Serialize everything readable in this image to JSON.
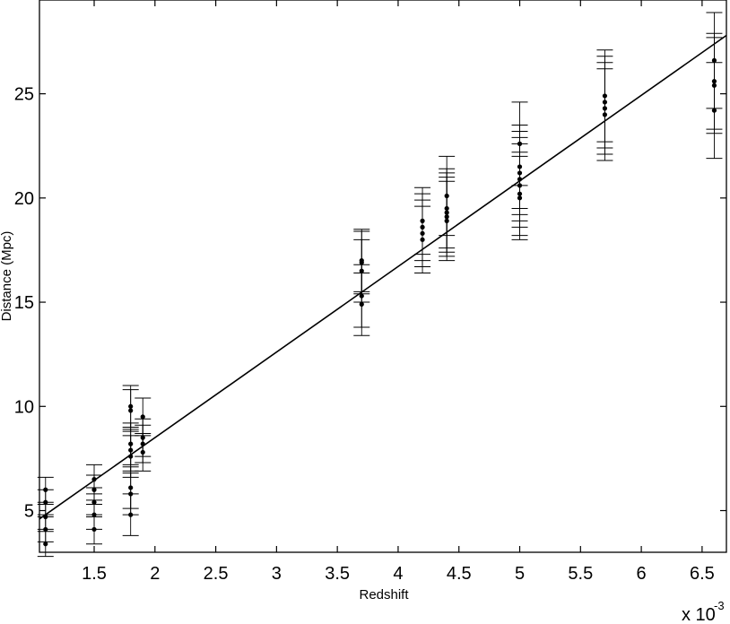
{
  "chart_data": {
    "type": "scatter",
    "title": "",
    "xlabel": "Redshift",
    "ylabel": "Distance (Mpc)",
    "x_multiplier_label": "x 10",
    "x_multiplier_exponent": "-3",
    "xlim": [
      1.05,
      6.7
    ],
    "ylim": [
      3.0,
      29.5
    ],
    "x_ticks": [
      1.5,
      2,
      2.5,
      3,
      3.5,
      4,
      4.5,
      5,
      5.5,
      6,
      6.5
    ],
    "x_tick_labels": [
      "1.5",
      "2",
      "2.5",
      "3",
      "3.5",
      "4",
      "4.5",
      "5",
      "5.5",
      "6",
      "6.5"
    ],
    "y_ticks": [
      5,
      10,
      15,
      20,
      25
    ],
    "y_tick_labels": [
      "5",
      "10",
      "15",
      "20",
      "25"
    ],
    "grid": false,
    "legend": "none",
    "fit_line": {
      "x": [
        1.05,
        6.7
      ],
      "y": [
        4.6,
        27.8
      ]
    },
    "points": [
      {
        "x": 1.1,
        "y": 3.4,
        "err": 0.6
      },
      {
        "x": 1.1,
        "y": 4.1,
        "err": 0.6
      },
      {
        "x": 1.1,
        "y": 4.7,
        "err": 0.6
      },
      {
        "x": 1.1,
        "y": 5.4,
        "err": 0.6
      },
      {
        "x": 1.1,
        "y": 6.0,
        "err": 0.6
      },
      {
        "x": 1.5,
        "y": 4.1,
        "err": 0.7
      },
      {
        "x": 1.5,
        "y": 4.8,
        "err": 0.7
      },
      {
        "x": 1.5,
        "y": 5.4,
        "err": 0.7
      },
      {
        "x": 1.5,
        "y": 6.0,
        "err": 0.7
      },
      {
        "x": 1.5,
        "y": 6.5,
        "err": 0.7
      },
      {
        "x": 1.8,
        "y": 4.8,
        "err": 1.0
      },
      {
        "x": 1.8,
        "y": 5.8,
        "err": 1.0
      },
      {
        "x": 1.8,
        "y": 6.1,
        "err": 1.0
      },
      {
        "x": 1.8,
        "y": 7.6,
        "err": 1.0
      },
      {
        "x": 1.8,
        "y": 7.9,
        "err": 1.0
      },
      {
        "x": 1.8,
        "y": 8.2,
        "err": 1.0
      },
      {
        "x": 1.8,
        "y": 9.8,
        "err": 1.0
      },
      {
        "x": 1.8,
        "y": 10.0,
        "err": 1.0
      },
      {
        "x": 1.9,
        "y": 7.8,
        "err": 0.9
      },
      {
        "x": 1.9,
        "y": 8.2,
        "err": 0.9
      },
      {
        "x": 1.9,
        "y": 8.5,
        "err": 0.9
      },
      {
        "x": 1.9,
        "y": 9.5,
        "err": 0.9
      },
      {
        "x": 3.7,
        "y": 14.9,
        "err": 1.5
      },
      {
        "x": 3.7,
        "y": 15.3,
        "err": 1.5
      },
      {
        "x": 3.7,
        "y": 16.5,
        "err": 1.5
      },
      {
        "x": 3.7,
        "y": 16.9,
        "err": 1.5
      },
      {
        "x": 3.7,
        "y": 17.0,
        "err": 1.5
      },
      {
        "x": 4.2,
        "y": 18.0,
        "err": 1.6
      },
      {
        "x": 4.2,
        "y": 18.3,
        "err": 1.6
      },
      {
        "x": 4.2,
        "y": 18.6,
        "err": 1.6
      },
      {
        "x": 4.2,
        "y": 18.9,
        "err": 1.6
      },
      {
        "x": 4.4,
        "y": 18.9,
        "err": 1.9
      },
      {
        "x": 4.4,
        "y": 19.1,
        "err": 1.9
      },
      {
        "x": 4.4,
        "y": 19.3,
        "err": 1.9
      },
      {
        "x": 4.4,
        "y": 19.5,
        "err": 1.9
      },
      {
        "x": 4.4,
        "y": 20.1,
        "err": 1.9
      },
      {
        "x": 5.0,
        "y": 20.0,
        "err": 2.0
      },
      {
        "x": 5.0,
        "y": 20.2,
        "err": 2.0
      },
      {
        "x": 5.0,
        "y": 20.6,
        "err": 2.0
      },
      {
        "x": 5.0,
        "y": 20.9,
        "err": 2.0
      },
      {
        "x": 5.0,
        "y": 21.2,
        "err": 2.0
      },
      {
        "x": 5.0,
        "y": 21.5,
        "err": 2.0
      },
      {
        "x": 5.0,
        "y": 22.6,
        "err": 2.0
      },
      {
        "x": 5.7,
        "y": 24.0,
        "err": 2.2
      },
      {
        "x": 5.7,
        "y": 24.3,
        "err": 2.2
      },
      {
        "x": 5.7,
        "y": 24.6,
        "err": 2.2
      },
      {
        "x": 5.7,
        "y": 24.9,
        "err": 2.2
      },
      {
        "x": 6.6,
        "y": 24.2,
        "err": 2.3
      },
      {
        "x": 6.6,
        "y": 25.4,
        "err": 2.3
      },
      {
        "x": 6.6,
        "y": 25.6,
        "err": 2.3
      },
      {
        "x": 6.6,
        "y": 26.6,
        "err": 2.3
      }
    ]
  }
}
